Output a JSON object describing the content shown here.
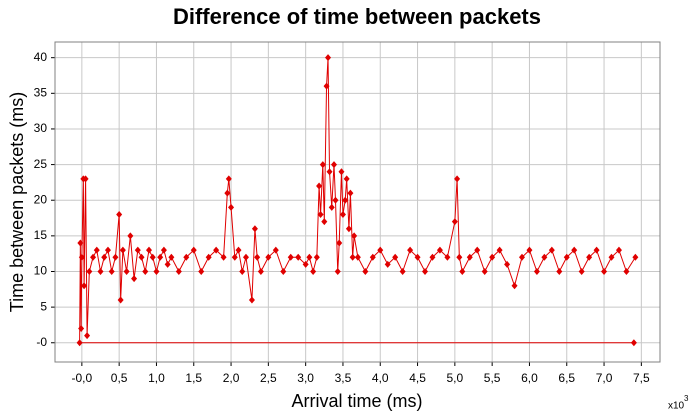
{
  "chart_data": {
    "type": "line",
    "title": "Difference of time between packets",
    "x_label": "Arrival time (ms)",
    "y_label": "Time between packets (ms)",
    "x_multiplier": "x10",
    "x_multiplier_exp": "3",
    "xlim": [
      -0.36,
      7.75
    ],
    "ylim": [
      -2.7,
      42.2
    ],
    "xticks": [
      {
        "value": 0,
        "label": "-0,0"
      },
      {
        "value": 0.5,
        "label": "0,5"
      },
      {
        "value": 1,
        "label": "1,0"
      },
      {
        "value": 1.5,
        "label": "1,5"
      },
      {
        "value": 2,
        "label": "2,0"
      },
      {
        "value": 2.5,
        "label": "2,5"
      },
      {
        "value": 3,
        "label": "3,0"
      },
      {
        "value": 3.5,
        "label": "3,5"
      },
      {
        "value": 4,
        "label": "4,0"
      },
      {
        "value": 4.5,
        "label": "4,5"
      },
      {
        "value": 5,
        "label": "5,0"
      },
      {
        "value": 5.5,
        "label": "5,5"
      },
      {
        "value": 6,
        "label": "6,0"
      },
      {
        "value": 6.5,
        "label": "6,5"
      },
      {
        "value": 7,
        "label": "7,0"
      },
      {
        "value": 7.5,
        "label": "7,5"
      }
    ],
    "yticks": [
      {
        "value": 0,
        "label": "-0"
      },
      5,
      10,
      15,
      20,
      25,
      30,
      35,
      40
    ],
    "grid": true,
    "series": [
      {
        "color": "#e00000",
        "x": [
          7.4,
          -0.03,
          -0.02,
          -0.01,
          0.0,
          0.02,
          0.03,
          0.05,
          0.07,
          0.1,
          0.15,
          0.2,
          0.25,
          0.3,
          0.35,
          0.4,
          0.45,
          0.5,
          0.52,
          0.55,
          0.6,
          0.65,
          0.7,
          0.75,
          0.8,
          0.85,
          0.9,
          0.95,
          1.0,
          1.05,
          1.1,
          1.15,
          1.2,
          1.3,
          1.4,
          1.5,
          1.6,
          1.7,
          1.8,
          1.9,
          1.95,
          1.97,
          2.0,
          2.05,
          2.1,
          2.15,
          2.2,
          2.28,
          2.32,
          2.35,
          2.4,
          2.5,
          2.6,
          2.7,
          2.8,
          2.9,
          3.0,
          3.05,
          3.1,
          3.15,
          3.18,
          3.2,
          3.23,
          3.25,
          3.28,
          3.3,
          3.32,
          3.35,
          3.38,
          3.4,
          3.43,
          3.45,
          3.48,
          3.5,
          3.53,
          3.55,
          3.58,
          3.6,
          3.63,
          3.65,
          3.7,
          3.8,
          3.9,
          4.0,
          4.1,
          4.2,
          4.3,
          4.4,
          4.5,
          4.6,
          4.7,
          4.8,
          4.9,
          5.0,
          5.03,
          5.06,
          5.1,
          5.2,
          5.3,
          5.4,
          5.5,
          5.6,
          5.7,
          5.8,
          5.9,
          6.0,
          6.1,
          6.2,
          6.3,
          6.4,
          6.5,
          6.6,
          6.7,
          6.8,
          6.9,
          7.0,
          7.1,
          7.2,
          7.3,
          7.42
        ],
        "values": [
          0,
          0,
          14,
          2,
          12,
          23,
          8,
          23,
          1,
          10,
          12,
          13,
          10,
          12,
          13,
          10,
          12,
          18,
          6,
          13,
          10,
          15,
          9,
          13,
          12,
          10,
          13,
          12,
          10,
          12,
          13,
          11,
          12,
          10,
          12,
          13,
          10,
          12,
          13,
          12,
          21,
          23,
          19,
          12,
          13,
          10,
          12,
          6,
          16,
          12,
          10,
          12,
          13,
          10,
          12,
          12,
          11,
          12,
          10,
          12,
          22,
          18,
          25,
          17,
          36,
          40,
          24,
          19,
          25,
          20,
          10,
          14,
          24,
          18,
          20,
          23,
          16,
          21,
          12,
          15,
          12,
          10,
          12,
          13,
          11,
          12,
          10,
          13,
          12,
          10,
          12,
          13,
          12,
          17,
          23,
          12,
          10,
          12,
          13,
          10,
          12,
          13,
          11,
          8,
          12,
          13,
          10,
          12,
          13,
          10,
          12,
          13,
          10,
          12,
          13,
          10,
          12,
          13,
          10,
          12
        ]
      }
    ]
  }
}
